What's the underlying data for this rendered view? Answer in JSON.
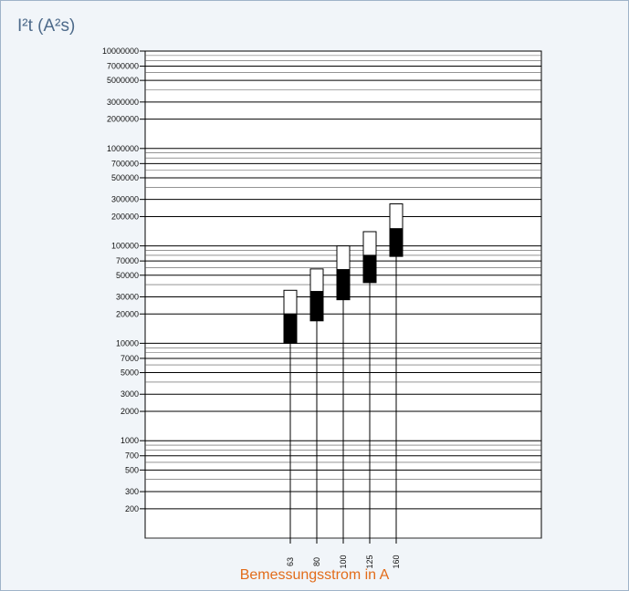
{
  "chart_data": {
    "type": "bar",
    "y_axis_label": "I²t (A²s)",
    "x_axis_label": "Bemessungsstrom in A",
    "y_scale": "log",
    "ylim": [
      100,
      10000000
    ],
    "y_tick_labels": [
      "10000000",
      "7000000",
      "5000000",
      "3000000",
      "2000000",
      "1000000",
      "700000",
      "500000",
      "300000",
      "200000",
      "100000",
      "70000",
      "50000",
      "30000",
      "20000",
      "10000",
      "7000",
      "5000",
      "3000",
      "2000",
      "1000",
      "700",
      "500",
      "300",
      "200"
    ],
    "y_tick_values": [
      10000000,
      7000000,
      5000000,
      3000000,
      2000000,
      1000000,
      700000,
      500000,
      300000,
      200000,
      100000,
      70000,
      50000,
      30000,
      20000,
      10000,
      7000,
      5000,
      3000,
      2000,
      1000,
      700,
      500,
      300,
      200
    ],
    "categories": [
      "63",
      "80",
      "100",
      "125",
      "160"
    ],
    "series": [
      {
        "pre_arcing_min": 10000,
        "pre_arcing_max": 20000,
        "total_max": 35000
      },
      {
        "pre_arcing_min": 17000,
        "pre_arcing_max": 34000,
        "total_max": 58000
      },
      {
        "pre_arcing_min": 28000,
        "pre_arcing_max": 57000,
        "total_max": 100000
      },
      {
        "pre_arcing_min": 42000,
        "pre_arcing_max": 80000,
        "total_max": 140000
      },
      {
        "pre_arcing_min": 78000,
        "pre_arcing_max": 150000,
        "total_max": 270000
      }
    ],
    "grid": true,
    "colors": {
      "pre_arcing": "#000000",
      "total": "#ffffff",
      "y_label": "#4d6a8a",
      "x_label": "#e26c1a",
      "background": "#f1f5f9"
    }
  }
}
